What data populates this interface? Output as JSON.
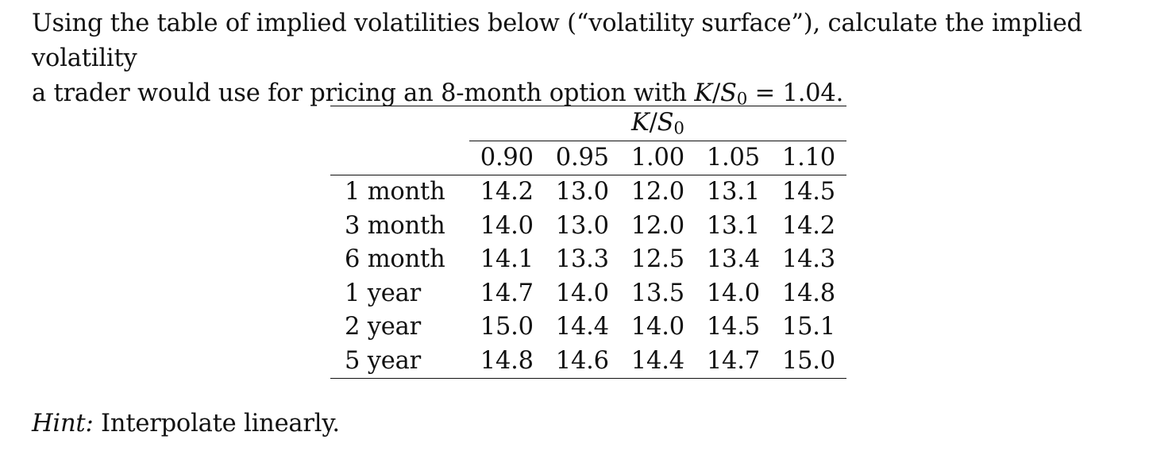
{
  "problem": {
    "line1": "Using the table of implied volatilities below (“volatility surface”), calculate the implied volatility",
    "line2_prefix": "a trader would use for pricing an 8-month option with ",
    "line2_math_K": "K",
    "line2_math_slash": "/",
    "line2_math_S": "S",
    "line2_math_sub": "0",
    "line2_suffix": " = 1.04."
  },
  "table": {
    "group_header_K": "K",
    "group_header_slash": "/",
    "group_header_S": "S",
    "group_header_sub": "0",
    "columns": [
      "0.90",
      "0.95",
      "1.00",
      "1.05",
      "1.10"
    ],
    "rows": [
      {
        "label": "1 month",
        "values": [
          "14.2",
          "13.0",
          "12.0",
          "13.1",
          "14.5"
        ]
      },
      {
        "label": "3 month",
        "values": [
          "14.0",
          "13.0",
          "12.0",
          "13.1",
          "14.2"
        ]
      },
      {
        "label": "6 month",
        "values": [
          "14.1",
          "13.3",
          "12.5",
          "13.4",
          "14.3"
        ]
      },
      {
        "label": "1 year",
        "values": [
          "14.7",
          "14.0",
          "13.5",
          "14.0",
          "14.8"
        ]
      },
      {
        "label": "2 year",
        "values": [
          "15.0",
          "14.4",
          "14.0",
          "14.5",
          "15.1"
        ]
      },
      {
        "label": "5 year",
        "values": [
          "14.8",
          "14.6",
          "14.4",
          "14.7",
          "15.0"
        ]
      }
    ]
  },
  "hint": {
    "label": "Hint:",
    "text": " Interpolate linearly."
  }
}
